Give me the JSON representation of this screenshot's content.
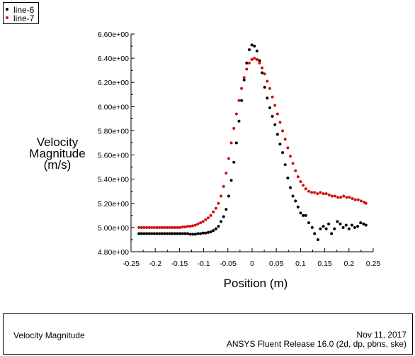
{
  "legend": {
    "entries": [
      {
        "label": "line-6",
        "color": "#000000"
      },
      {
        "label": "line-7",
        "color": "#d01010"
      }
    ]
  },
  "footer": {
    "left_text": "Velocity Magnitude",
    "date": "Nov 11, 2017",
    "release": "ANSYS Fluent Release 16.0 (2d, dp, pbns, ske)"
  },
  "chart_data": {
    "type": "scatter",
    "title": "",
    "xlabel": "Position (m)",
    "ylabel_lines": [
      "Velocity",
      "Magnitude",
      "(m/s)"
    ],
    "xlim": [
      -0.25,
      0.25
    ],
    "ylim": [
      4.8,
      6.6
    ],
    "x_ticks": [
      -0.25,
      -0.2,
      -0.15,
      -0.1,
      -0.05,
      0,
      0.05,
      0.1,
      0.15,
      0.2,
      0.25
    ],
    "x_tick_labels": [
      "-0.25",
      "-0.2",
      "-0.15",
      "-0.1",
      "-0.05",
      "0",
      "0.05",
      "0.1",
      "0.15",
      "0.2",
      "0.25"
    ],
    "y_ticks": [
      4.8,
      5.0,
      5.2,
      5.4,
      5.6,
      5.8,
      6.0,
      6.2,
      6.4,
      6.6
    ],
    "y_tick_labels": [
      "4.80e+00",
      "5.00e+00",
      "5.20e+00",
      "5.40e+00",
      "5.60e+00",
      "5.80e+00",
      "6.00e+00",
      "6.20e+00",
      "6.40e+00",
      "6.60e+00"
    ],
    "grid": false,
    "legend_position": "top-left",
    "series": [
      {
        "name": "line-6",
        "color": "#000000",
        "points": [
          [
            -0.2338,
            4.95
          ],
          [
            -0.2285,
            4.95
          ],
          [
            -0.2232,
            4.95
          ],
          [
            -0.2179,
            4.95
          ],
          [
            -0.2126,
            4.95
          ],
          [
            -0.2073,
            4.95
          ],
          [
            -0.202,
            4.95
          ],
          [
            -0.1967,
            4.95
          ],
          [
            -0.1914,
            4.95
          ],
          [
            -0.1861,
            4.95
          ],
          [
            -0.1808,
            4.95
          ],
          [
            -0.1755,
            4.95
          ],
          [
            -0.1702,
            4.95
          ],
          [
            -0.1649,
            4.95
          ],
          [
            -0.1596,
            4.95
          ],
          [
            -0.1543,
            4.95
          ],
          [
            -0.149,
            4.95
          ],
          [
            -0.1437,
            4.95
          ],
          [
            -0.1384,
            4.95
          ],
          [
            -0.1331,
            4.95
          ],
          [
            -0.1278,
            4.945
          ],
          [
            -0.1225,
            4.945
          ],
          [
            -0.1172,
            4.945
          ],
          [
            -0.1119,
            4.95
          ],
          [
            -0.1066,
            4.95
          ],
          [
            -0.1013,
            4.955
          ],
          [
            -0.096,
            4.955
          ],
          [
            -0.0907,
            4.96
          ],
          [
            -0.0854,
            4.965
          ],
          [
            -0.0801,
            4.975
          ],
          [
            -0.0748,
            4.99
          ],
          [
            -0.0695,
            5.01
          ],
          [
            -0.0642,
            5.05
          ],
          [
            -0.0589,
            5.09
          ],
          [
            -0.0536,
            5.15
          ],
          [
            -0.0483,
            5.26
          ],
          [
            -0.043,
            5.39
          ],
          [
            -0.0377,
            5.54
          ],
          [
            -0.0324,
            5.7
          ],
          [
            -0.0271,
            5.88
          ],
          [
            -0.0218,
            6.05
          ],
          [
            -0.0165,
            6.22
          ],
          [
            -0.0112,
            6.36
          ],
          [
            -0.0059,
            6.47
          ],
          [
            -0.0006,
            6.51
          ],
          [
            0.0047,
            6.5
          ],
          [
            0.01,
            6.46
          ],
          [
            0.0153,
            6.38
          ],
          [
            0.0206,
            6.28
          ],
          [
            0.0259,
            6.16
          ],
          [
            0.0312,
            6.07
          ],
          [
            0.0365,
            5.99
          ],
          [
            0.0418,
            5.92
          ],
          [
            0.0471,
            5.85
          ],
          [
            0.0524,
            5.77
          ],
          [
            0.0577,
            5.69
          ],
          [
            0.063,
            5.62
          ],
          [
            0.0683,
            5.52
          ],
          [
            0.0736,
            5.41
          ],
          [
            0.0789,
            5.33
          ],
          [
            0.0842,
            5.26
          ],
          [
            0.0895,
            5.22
          ],
          [
            0.0948,
            5.17
          ],
          [
            0.1001,
            5.12
          ],
          [
            0.1054,
            5.1
          ],
          [
            0.1107,
            5.1
          ],
          [
            0.117,
            5.04
          ],
          [
            0.124,
            5.0
          ],
          [
            0.129,
            4.95
          ],
          [
            0.136,
            4.9
          ],
          [
            0.141,
            4.99
          ],
          [
            0.147,
            5.01
          ],
          [
            0.153,
            4.99
          ],
          [
            0.158,
            5.03
          ],
          [
            0.164,
            4.95
          ],
          [
            0.17,
            4.99
          ],
          [
            0.176,
            5.05
          ],
          [
            0.182,
            5.03
          ],
          [
            0.188,
            5.0
          ],
          [
            0.194,
            5.02
          ],
          [
            0.2,
            4.99
          ],
          [
            0.206,
            5.02
          ],
          [
            0.212,
            5.0
          ],
          [
            0.218,
            5.01
          ],
          [
            0.224,
            5.04
          ],
          [
            0.23,
            5.03
          ],
          [
            0.235,
            5.02
          ]
        ]
      },
      {
        "name": "line-7",
        "color": "#d01010",
        "points": [
          [
            -0.2338,
            5.0
          ],
          [
            -0.2285,
            5.0
          ],
          [
            -0.2232,
            5.0
          ],
          [
            -0.2179,
            5.0
          ],
          [
            -0.2126,
            5.0
          ],
          [
            -0.2073,
            5.0
          ],
          [
            -0.202,
            5.0
          ],
          [
            -0.1967,
            5.0
          ],
          [
            -0.1914,
            5.0
          ],
          [
            -0.1861,
            5.0
          ],
          [
            -0.1808,
            5.0
          ],
          [
            -0.1755,
            5.0
          ],
          [
            -0.1702,
            5.0
          ],
          [
            -0.1649,
            5.0
          ],
          [
            -0.1596,
            5.0
          ],
          [
            -0.1543,
            5.0
          ],
          [
            -0.149,
            5.0
          ],
          [
            -0.1437,
            5.005
          ],
          [
            -0.1384,
            5.005
          ],
          [
            -0.1331,
            5.01
          ],
          [
            -0.1278,
            5.01
          ],
          [
            -0.1225,
            5.015
          ],
          [
            -0.1172,
            5.02
          ],
          [
            -0.1119,
            5.03
          ],
          [
            -0.1066,
            5.04
          ],
          [
            -0.1013,
            5.05
          ],
          [
            -0.096,
            5.065
          ],
          [
            -0.0907,
            5.08
          ],
          [
            -0.0854,
            5.1
          ],
          [
            -0.0801,
            5.13
          ],
          [
            -0.0748,
            5.16
          ],
          [
            -0.0695,
            5.2
          ],
          [
            -0.0642,
            5.26
          ],
          [
            -0.0589,
            5.34
          ],
          [
            -0.0536,
            5.45
          ],
          [
            -0.0483,
            5.57
          ],
          [
            -0.043,
            5.7
          ],
          [
            -0.0377,
            5.82
          ],
          [
            -0.0324,
            5.94
          ],
          [
            -0.0271,
            6.05
          ],
          [
            -0.0218,
            6.15
          ],
          [
            -0.0165,
            6.24
          ],
          [
            -0.0112,
            6.31
          ],
          [
            -0.0059,
            6.36
          ],
          [
            -0.0006,
            6.39
          ],
          [
            0.0047,
            6.4
          ],
          [
            0.01,
            6.39
          ],
          [
            0.0153,
            6.36
          ],
          [
            0.0206,
            6.32
          ],
          [
            0.0259,
            6.27
          ],
          [
            0.0312,
            6.21
          ],
          [
            0.0365,
            6.15
          ],
          [
            0.0418,
            6.08
          ],
          [
            0.0471,
            6.01
          ],
          [
            0.0524,
            5.94
          ],
          [
            0.0577,
            5.87
          ],
          [
            0.063,
            5.8
          ],
          [
            0.0683,
            5.73
          ],
          [
            0.0736,
            5.66
          ],
          [
            0.0789,
            5.59
          ],
          [
            0.0842,
            5.53
          ],
          [
            0.0895,
            5.47
          ],
          [
            0.0948,
            5.42
          ],
          [
            0.1001,
            5.38
          ],
          [
            0.1054,
            5.35
          ],
          [
            0.1107,
            5.32
          ],
          [
            0.117,
            5.3
          ],
          [
            0.123,
            5.29
          ],
          [
            0.129,
            5.29
          ],
          [
            0.135,
            5.28
          ],
          [
            0.141,
            5.29
          ],
          [
            0.147,
            5.28
          ],
          [
            0.153,
            5.28
          ],
          [
            0.159,
            5.27
          ],
          [
            0.165,
            5.26
          ],
          [
            0.171,
            5.26
          ],
          [
            0.177,
            5.25
          ],
          [
            0.183,
            5.25
          ],
          [
            0.189,
            5.26
          ],
          [
            0.195,
            5.25
          ],
          [
            0.201,
            5.25
          ],
          [
            0.207,
            5.24
          ],
          [
            0.213,
            5.23
          ],
          [
            0.219,
            5.23
          ],
          [
            0.225,
            5.22
          ],
          [
            0.231,
            5.21
          ],
          [
            0.235,
            5.2
          ]
        ]
      }
    ]
  }
}
